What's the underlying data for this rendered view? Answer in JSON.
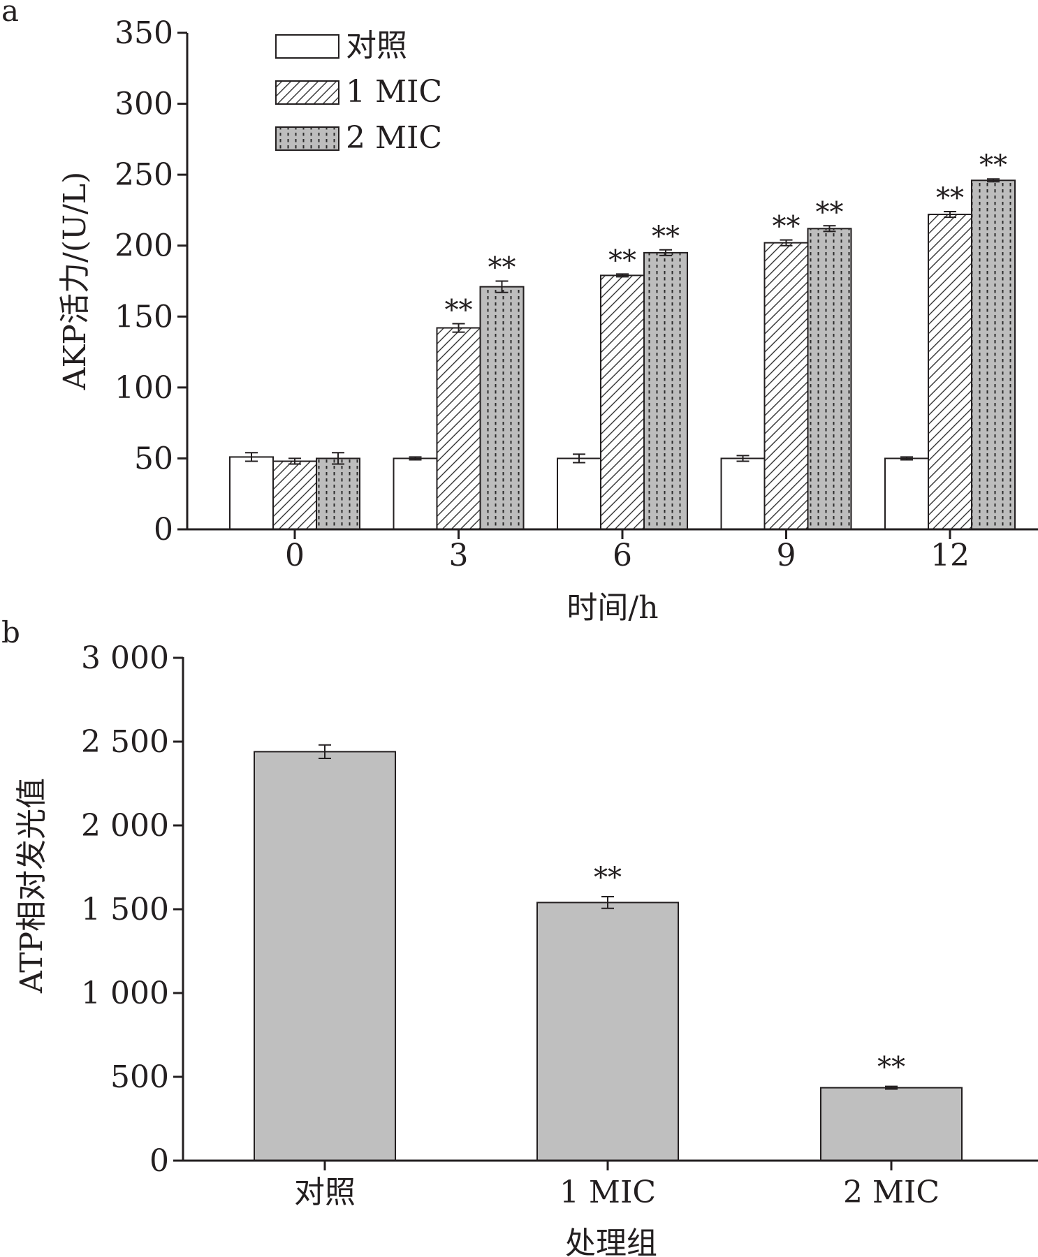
{
  "chart_data": [
    {
      "panel_label": "a",
      "type": "bar",
      "xlabel": "时间/h",
      "ylabel": "AKP活力/(U/L)",
      "categories": [
        "0",
        "3",
        "6",
        "9",
        "12"
      ],
      "ylim": [
        0,
        350
      ],
      "yticks": [
        0,
        50,
        100,
        150,
        200,
        250,
        300,
        350
      ],
      "ytick_labels": [
        "0",
        "50",
        "100",
        "150",
        "200",
        "250",
        "300",
        "350"
      ],
      "legend_position": "top-left",
      "grid": false,
      "series": [
        {
          "name": "对照",
          "pattern": "blank",
          "fill": "#ffffff",
          "values": [
            51,
            50,
            50,
            50,
            50
          ],
          "errors": [
            3,
            1,
            3,
            2,
            1
          ],
          "annotations": [
            "",
            "",
            "",
            "",
            ""
          ]
        },
        {
          "name": "1 MIC",
          "pattern": "hatch",
          "fill": "#ffffff",
          "values": [
            48,
            142,
            179,
            202,
            222
          ],
          "errors": [
            2,
            3,
            1,
            2,
            2
          ],
          "annotations": [
            "",
            "**",
            "**",
            "**",
            "**"
          ]
        },
        {
          "name": "2 MIC",
          "pattern": "dots",
          "fill": "#bdbdbd",
          "values": [
            50,
            171,
            195,
            212,
            246
          ],
          "errors": [
            4,
            4,
            2,
            2,
            1
          ],
          "annotations": [
            "",
            "**",
            "**",
            "**",
            "**"
          ]
        }
      ]
    },
    {
      "panel_label": "b",
      "type": "bar",
      "xlabel": "处理组",
      "ylabel": "ATP相对发光值",
      "categories": [
        "对照",
        "1 MIC",
        "2 MIC"
      ],
      "ylim": [
        0,
        3000
      ],
      "yticks": [
        0,
        500,
        1000,
        1500,
        2000,
        2500,
        3000
      ],
      "ytick_labels": [
        "0",
        "500",
        "1 000",
        "1 500",
        "2 000",
        "2 500",
        "3 000"
      ],
      "grid": false,
      "bar_color": "#bfbfbf",
      "values": [
        2440,
        1540,
        435
      ],
      "errors": [
        40,
        35,
        8
      ],
      "annotations": [
        "",
        "**",
        "**"
      ]
    }
  ]
}
